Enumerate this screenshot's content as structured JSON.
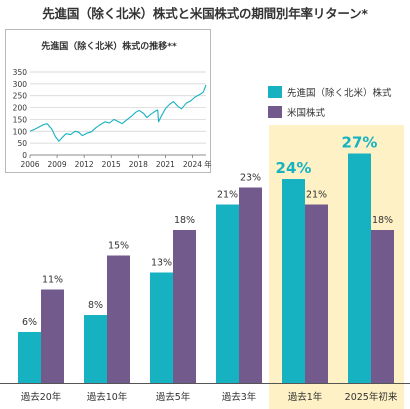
{
  "title": "先進国（除く北米）株式と米国株式の期間別年率リターン*",
  "colors": {
    "teal": "#17b2c2",
    "purple": "#725a8c",
    "highlight": "#fdf1c5",
    "line": "#17b2c2"
  },
  "chart_data": [
    {
      "type": "bar",
      "title": "",
      "categories": [
        "過去20年",
        "過去10年",
        "過去5年",
        "過去3年",
        "過去1年",
        "2025年初来"
      ],
      "series": [
        {
          "name": "先進国（除く北米）株式",
          "values": [
            6,
            8,
            13,
            21,
            24,
            27
          ],
          "labels": [
            "6%",
            "8%",
            "13%",
            "21%",
            "24%",
            "27%"
          ]
        },
        {
          "name": "米国株式",
          "values": [
            11,
            15,
            18,
            23,
            21,
            18
          ],
          "labels": [
            "11%",
            "15%",
            "18%",
            "23%",
            "21%",
            "18%"
          ]
        }
      ],
      "highlighted_categories": [
        "過去1年",
        "2025年初来"
      ],
      "ylim": [
        0,
        30
      ],
      "grid": false,
      "legend": "top-right"
    },
    {
      "type": "line",
      "title": "先進国（除く北米）株式の推移**",
      "x_ticks": [
        "2006",
        "2009",
        "2012",
        "2015",
        "2018",
        "2021",
        "2024"
      ],
      "x_unit": "年",
      "y_ticks": [
        "0",
        "50",
        "100",
        "150",
        "200",
        "250",
        "300",
        "350"
      ],
      "ylim": [
        0,
        350
      ],
      "xlim": [
        2006,
        2025.5
      ],
      "grid": true,
      "series": [
        {
          "x": [
            2006,
            2006.5,
            2007,
            2007.5,
            2007.9,
            2008.4,
            2008.8,
            2009.2,
            2009.6,
            2010,
            2010.5,
            2011,
            2011.4,
            2011.8,
            2012.3,
            2012.8,
            2013.3,
            2013.8,
            2014.3,
            2014.8,
            2015.3,
            2015.8,
            2016.2,
            2016.7,
            2017.2,
            2017.7,
            2018.1,
            2018.6,
            2018.95,
            2019.4,
            2019.9,
            2020.15,
            2020.25,
            2020.6,
            2021,
            2021.5,
            2021.9,
            2022.4,
            2022.8,
            2023.3,
            2023.8,
            2024.3,
            2024.8,
            2025.2,
            2025.5
          ],
          "y": [
            100,
            108,
            118,
            128,
            132,
            110,
            78,
            58,
            75,
            90,
            86,
            100,
            96,
            82,
            92,
            98,
            115,
            128,
            140,
            135,
            150,
            140,
            132,
            148,
            162,
            180,
            188,
            175,
            158,
            172,
            185,
            190,
            140,
            168,
            195,
            215,
            225,
            205,
            195,
            218,
            228,
            245,
            255,
            265,
            295
          ]
        }
      ]
    }
  ]
}
